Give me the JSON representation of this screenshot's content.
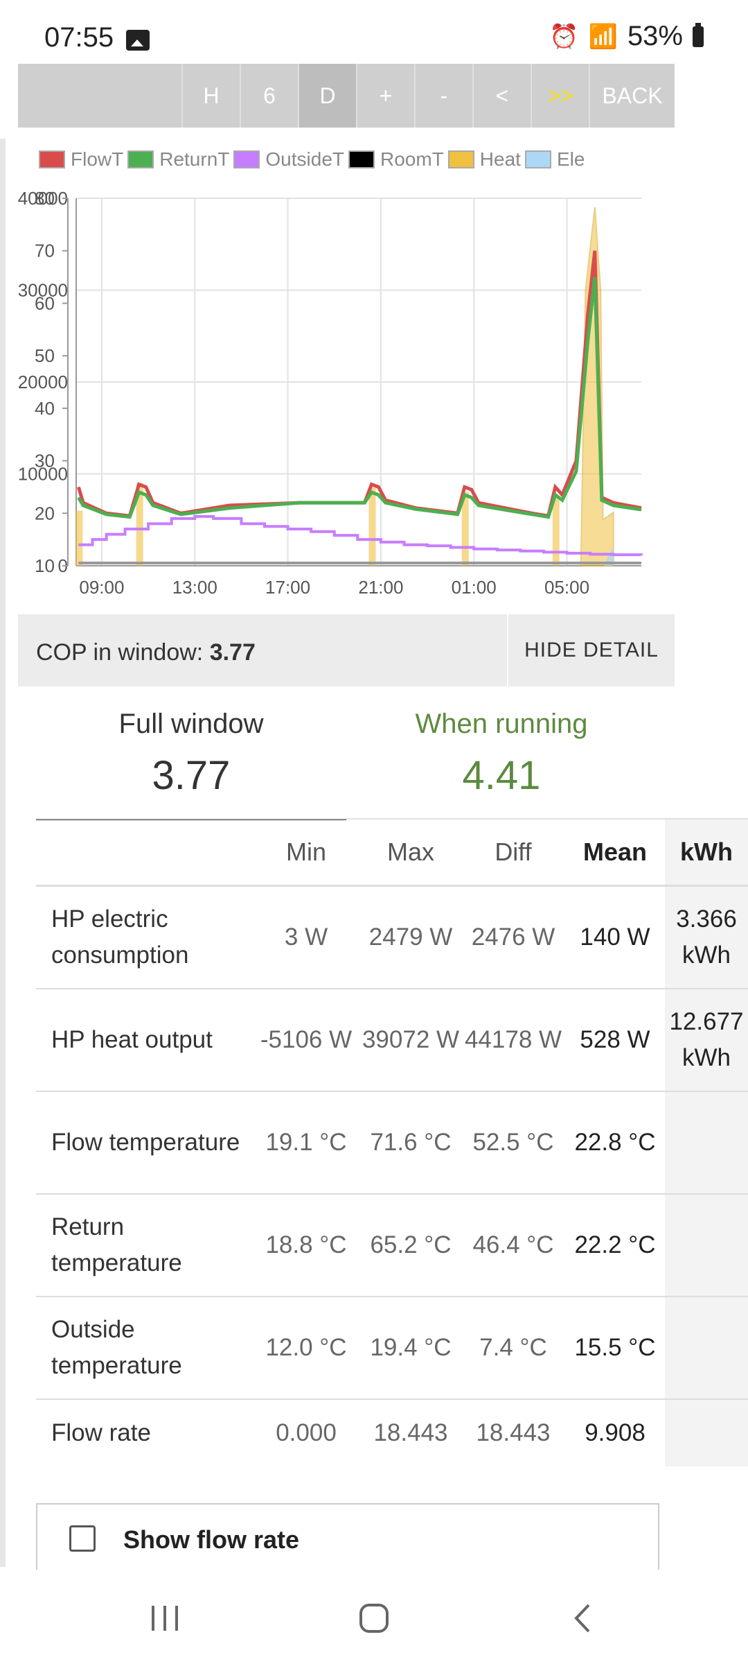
{
  "status": {
    "time": "07:55",
    "battery": "53%"
  },
  "toolbar": {
    "buttons": [
      "H",
      "6",
      "D",
      "+",
      "-",
      "<",
      ">>",
      "BACK"
    ]
  },
  "chart_data": {
    "type": "line",
    "legend": [
      {
        "name": "FlowT",
        "color": "#d94c4c"
      },
      {
        "name": "ReturnT",
        "color": "#4caf50"
      },
      {
        "name": "OutsideT",
        "color": "#c77dff"
      },
      {
        "name": "RoomT",
        "color": "#000000"
      },
      {
        "name": "Heat",
        "color": "#f0c040"
      },
      {
        "name": "Ele",
        "color": "#add8f5"
      }
    ],
    "x_ticks": [
      "09:00",
      "13:00",
      "17:00",
      "21:00",
      "01:00",
      "05:00"
    ],
    "x_range": [
      7.9,
      32.2
    ],
    "y_left_ticks": [
      10,
      20,
      30,
      40,
      50,
      60,
      70,
      80
    ],
    "y_left_range": [
      10,
      80
    ],
    "y_right_ticks": [
      0,
      10000,
      20000,
      30000,
      40000
    ],
    "y_right_range": [
      0,
      40000
    ],
    "series": [
      {
        "name": "FlowT",
        "color": "#d94c4c",
        "axis": "left",
        "x": [
          8.0,
          8.2,
          9.2,
          10.2,
          10.6,
          10.9,
          11.2,
          12.4,
          14.5,
          17.5,
          20.3,
          20.6,
          20.9,
          21.2,
          22.5,
          24.3,
          24.6,
          24.9,
          25.2,
          27.5,
          28.2,
          28.5,
          28.8,
          29.4,
          29.9,
          30.2,
          30.5,
          31.0,
          32.2
        ],
        "y": [
          25,
          22,
          20,
          19.5,
          25.5,
          25,
          22,
          20,
          21.5,
          22,
          22,
          25.5,
          25,
          22.5,
          21,
          20,
          25,
          24.5,
          22,
          20,
          19.5,
          25,
          23.5,
          30,
          58,
          70,
          23,
          22,
          21
        ]
      },
      {
        "name": "ReturnT",
        "color": "#4caf50",
        "axis": "left",
        "x": [
          8.0,
          8.2,
          9.2,
          10.2,
          10.6,
          10.9,
          11.2,
          12.4,
          14.5,
          17.5,
          20.3,
          20.6,
          20.9,
          21.2,
          22.5,
          24.3,
          24.6,
          24.9,
          25.2,
          27.5,
          28.2,
          28.5,
          28.8,
          29.4,
          29.9,
          30.2,
          30.5,
          31.0,
          32.2
        ],
        "y": [
          23,
          21.5,
          19.8,
          19.3,
          24,
          23.5,
          21.5,
          19.8,
          21,
          22,
          22,
          24,
          23.5,
          22,
          20.8,
          19.8,
          23.5,
          23,
          21.5,
          19.8,
          19.3,
          23.5,
          22.5,
          28,
          53,
          65,
          22.5,
          21.5,
          20.7
        ]
      },
      {
        "name": "OutsideT",
        "color": "#c77dff",
        "axis": "left",
        "x": [
          8.0,
          8.6,
          9.2,
          10.0,
          11.0,
          12.0,
          13.0,
          13.8,
          15.0,
          16.0,
          17.0,
          18.0,
          19.0,
          20.0,
          21.0,
          22.0,
          23.0,
          24.0,
          25.0,
          26.0,
          27.0,
          28.0,
          29.0,
          30.0,
          31.0,
          32.2
        ],
        "y": [
          14,
          15,
          16,
          17,
          18,
          19,
          19.4,
          19,
          18,
          17.5,
          17,
          16.5,
          15.8,
          15,
          14.5,
          14,
          13.8,
          13.5,
          13.2,
          13,
          12.8,
          12.6,
          12.4,
          12.2,
          12.1,
          12.0
        ]
      }
    ]
  },
  "cop_bar": {
    "label": "COP in window: ",
    "value": "3.77",
    "hide_label": "HIDE DETAIL"
  },
  "tabs": [
    {
      "title": "Full window",
      "value": "3.77"
    },
    {
      "title": "When running",
      "value": "4.41"
    }
  ],
  "table": {
    "headers": [
      "",
      "Min",
      "Max",
      "Diff",
      "Mean",
      "kWh"
    ],
    "rows": [
      {
        "label": "HP electric consumption",
        "min": "3 W",
        "max": "2479 W",
        "diff": "2476 W",
        "mean": "140 W",
        "kwh": "3.366 kWh"
      },
      {
        "label": "HP heat output",
        "min": "-5106 W",
        "max": "39072 W",
        "diff": "44178 W",
        "mean": "528 W",
        "kwh": "12.677 kWh"
      },
      {
        "label": "Flow temperature",
        "min": "19.1 °C",
        "max": "71.6 °C",
        "diff": "52.5 °C",
        "mean": "22.8 °C",
        "kwh": ""
      },
      {
        "label": "Return temperature",
        "min": "18.8 °C",
        "max": "65.2 °C",
        "diff": "46.4 °C",
        "mean": "22.2 °C",
        "kwh": ""
      },
      {
        "label": "Outside temperature",
        "min": "12.0 °C",
        "max": "19.4 °C",
        "diff": "7.4 °C",
        "mean": "15.5 °C",
        "kwh": ""
      },
      {
        "label": "Flow rate",
        "min": "0.000",
        "max": "18.443",
        "diff": "18.443",
        "mean": "9.908",
        "kwh": ""
      }
    ]
  },
  "checkbox": {
    "label": "Show flow rate"
  }
}
